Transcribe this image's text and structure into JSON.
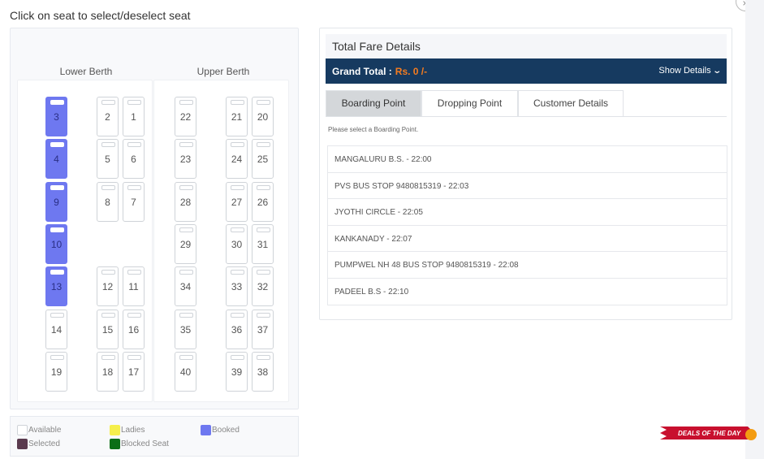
{
  "instruction": "Click on seat to select/deselect seat",
  "close_glyph": "×",
  "berths": {
    "lower_title": "Lower Berth",
    "upper_title": "Upper Berth"
  },
  "lower_seats": [
    {
      "label": "3",
      "status": "booked"
    },
    {
      "label": "2",
      "status": "available"
    },
    {
      "label": "1",
      "status": "available"
    },
    {
      "label": "4",
      "status": "booked"
    },
    {
      "label": "5",
      "status": "available"
    },
    {
      "label": "6",
      "status": "available"
    },
    {
      "label": "9",
      "status": "booked"
    },
    {
      "label": "8",
      "status": "available"
    },
    {
      "label": "7",
      "status": "available"
    },
    {
      "label": "10",
      "status": "booked"
    },
    {
      "label": "13",
      "status": "booked"
    },
    {
      "label": "12",
      "status": "available"
    },
    {
      "label": "11",
      "status": "available"
    },
    {
      "label": "14",
      "status": "available"
    },
    {
      "label": "15",
      "status": "available"
    },
    {
      "label": "16",
      "status": "available"
    },
    {
      "label": "19",
      "status": "available"
    },
    {
      "label": "18",
      "status": "available"
    },
    {
      "label": "17",
      "status": "available"
    }
  ],
  "upper_seats": [
    {
      "label": "22",
      "status": "available"
    },
    {
      "label": "21",
      "status": "available"
    },
    {
      "label": "20",
      "status": "available"
    },
    {
      "label": "23",
      "status": "available"
    },
    {
      "label": "24",
      "status": "available"
    },
    {
      "label": "25",
      "status": "available"
    },
    {
      "label": "28",
      "status": "available"
    },
    {
      "label": "27",
      "status": "available"
    },
    {
      "label": "26",
      "status": "available"
    },
    {
      "label": "29",
      "status": "available"
    },
    {
      "label": "30",
      "status": "available"
    },
    {
      "label": "31",
      "status": "available"
    },
    {
      "label": "34",
      "status": "available"
    },
    {
      "label": "33",
      "status": "available"
    },
    {
      "label": "32",
      "status": "available"
    },
    {
      "label": "35",
      "status": "available"
    },
    {
      "label": "36",
      "status": "available"
    },
    {
      "label": "37",
      "status": "available"
    },
    {
      "label": "40",
      "status": "available"
    },
    {
      "label": "39",
      "status": "available"
    },
    {
      "label": "38",
      "status": "available"
    }
  ],
  "legend": {
    "available": "Available",
    "ladies": "Ladies",
    "booked": "Booked",
    "selected": "Selected",
    "blocked": "Blocked Seat"
  },
  "colors": {
    "booked": "#6e78f0",
    "ladies": "#f5ef4c",
    "selected": "#5a3a4e",
    "blocked": "#0b6e17",
    "grand_bar": "#163a60",
    "grand_total_value": "#f57c1f"
  },
  "fare": {
    "title": "Total Fare Details",
    "grand_total_label": "Grand Total :",
    "grand_total_value": "Rs. 0 /-",
    "show_details": "Show Details",
    "chevron_icon": "chevron-down-icon"
  },
  "tabs": {
    "boarding": "Boarding Point",
    "dropping": "Dropping Point",
    "customer": "Customer Details"
  },
  "boarding_hint": "Please select a Boarding Point.",
  "boarding_points": [
    "MANGALURU B.S. - 22:00",
    "PVS BUS STOP 9480815319 - 22:03",
    "JYOTHI CIRCLE - 22:05",
    "KANKANADY - 22:07",
    "PUMPWEL NH 48 BUS STOP 9480815319 - 22:08",
    "PADEEL B.S - 22:10"
  ],
  "deals_text": "DEALS OF THE DAY"
}
